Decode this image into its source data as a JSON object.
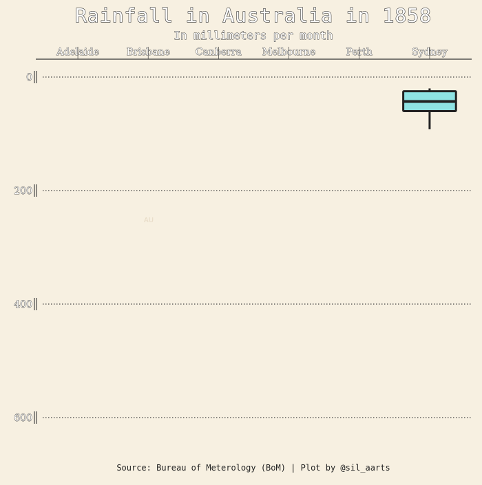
{
  "chart_data": {
    "type": "boxplot",
    "title": "Rainfall in Australia in 1858",
    "subtitle": "In millimeters per month",
    "categories": [
      "Adelaide",
      "Brisbane",
      "Canberra",
      "Melbourne",
      "Perth",
      "Sydney"
    ],
    "y_axis": {
      "range": [
        0,
        600
      ],
      "reversed": true,
      "ticks": [
        0,
        200,
        400,
        600
      ],
      "grid": true
    },
    "boxes": [
      {
        "category": "Sydney",
        "whisker_low": 20,
        "q1": 25,
        "median": 43,
        "q3": 60,
        "whisker_high": 92
      }
    ],
    "box_fill": "#8ee3e3",
    "box_stroke": "#222222",
    "watermark": "AU",
    "caption": "Source: Bureau of Meterology (BoM) | Plot by @sil_aarts"
  }
}
